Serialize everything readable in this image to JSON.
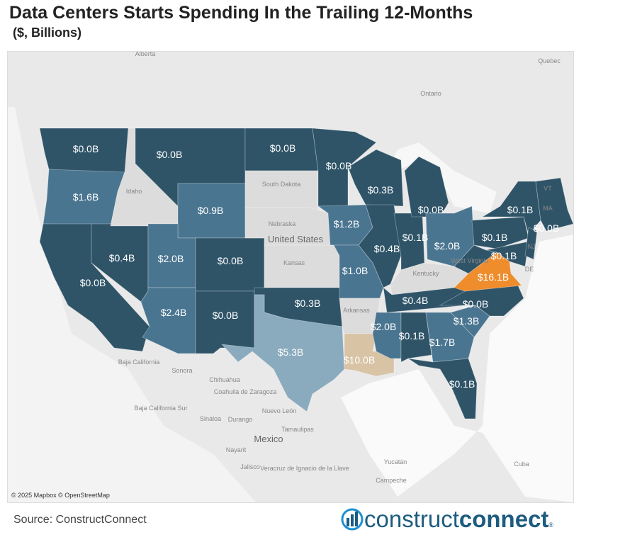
{
  "title": "Data Centers Starts Spending In the Trailing 12-Months",
  "subtitle": "($, Billions)",
  "credit": "© 2025 Mapbox © OpenStreetMap",
  "source": "Source: ConstructConnect",
  "logo": {
    "light": "construct",
    "bold": "connect",
    "mark": "®"
  },
  "colors": {
    "dark": "#2f5468",
    "mid": "#4a7590",
    "light": "#8aaabd",
    "tan": "#d8c3a5",
    "orange": "#ef8c2c",
    "nodata": "#dcdcdc"
  },
  "basemap_labels": [
    "Alberta",
    "Quebec",
    "Ontario",
    "Idaho",
    "South Dakota",
    "Nebraska",
    "United States",
    "Kansas",
    "Arkansas",
    "Kentucky",
    "Baja California",
    "Sonora",
    "Chihuahua",
    "Coahuila de Zaragoza",
    "Nuevo León",
    "Baja California Sur",
    "Sinaloa",
    "Durango",
    "Tamaulipas",
    "Mexico",
    "Nayarit",
    "Jalisco",
    "Veracruz de Ignacio de la Llave",
    "Yucatán",
    "Campeche",
    "Cuba",
    "West Virginia",
    "VT",
    "MA",
    "NJ",
    "DE"
  ],
  "states": [
    {
      "code": "WA",
      "label": "$0.0B",
      "tier": "dark"
    },
    {
      "code": "OR",
      "label": "$1.6B",
      "tier": "mid"
    },
    {
      "code": "CA",
      "label": "$0.0B",
      "tier": "dark"
    },
    {
      "code": "NV",
      "label": "$0.4B",
      "tier": "dark"
    },
    {
      "code": "ID",
      "label": "",
      "tier": "nodata"
    },
    {
      "code": "MT",
      "label": "$0.0B",
      "tier": "dark"
    },
    {
      "code": "WY",
      "label": "$0.9B",
      "tier": "mid"
    },
    {
      "code": "UT",
      "label": "$2.0B",
      "tier": "mid"
    },
    {
      "code": "CO",
      "label": "$0.0B",
      "tier": "dark"
    },
    {
      "code": "AZ",
      "label": "$2.4B",
      "tier": "mid"
    },
    {
      "code": "NM",
      "label": "$0.0B",
      "tier": "dark"
    },
    {
      "code": "ND",
      "label": "$0.0B",
      "tier": "dark"
    },
    {
      "code": "SD",
      "label": "",
      "tier": "nodata"
    },
    {
      "code": "NE",
      "label": "",
      "tier": "nodata"
    },
    {
      "code": "KS",
      "label": "",
      "tier": "nodata"
    },
    {
      "code": "OK",
      "label": "$0.3B",
      "tier": "dark"
    },
    {
      "code": "TX",
      "label": "$5.3B",
      "tier": "light"
    },
    {
      "code": "MN",
      "label": "$0.0B",
      "tier": "dark"
    },
    {
      "code": "IA",
      "label": "$1.2B",
      "tier": "mid"
    },
    {
      "code": "MO",
      "label": "$1.0B",
      "tier": "mid"
    },
    {
      "code": "AR",
      "label": "",
      "tier": "nodata"
    },
    {
      "code": "LA",
      "label": "$10.0B",
      "tier": "tan"
    },
    {
      "code": "WI",
      "label": "$0.3B",
      "tier": "dark"
    },
    {
      "code": "IL",
      "label": "$0.4B",
      "tier": "dark"
    },
    {
      "code": "IN",
      "label": "$0.1B",
      "tier": "dark"
    },
    {
      "code": "MI",
      "label": "$0.0B",
      "tier": "dark"
    },
    {
      "code": "OH",
      "label": "$2.0B",
      "tier": "mid"
    },
    {
      "code": "KY",
      "label": "",
      "tier": "nodata"
    },
    {
      "code": "TN",
      "label": "$0.4B",
      "tier": "dark"
    },
    {
      "code": "MS",
      "label": "$2.0B",
      "tier": "mid"
    },
    {
      "code": "AL",
      "label": "$0.1B",
      "tier": "dark"
    },
    {
      "code": "GA",
      "label": "$1.7B",
      "tier": "mid"
    },
    {
      "code": "FL",
      "label": "$0.1B",
      "tier": "dark"
    },
    {
      "code": "SC",
      "label": "$1.3B",
      "tier": "mid"
    },
    {
      "code": "NC",
      "label": "$0.0B",
      "tier": "dark"
    },
    {
      "code": "VA",
      "label": "$16.1B",
      "tier": "orange"
    },
    {
      "code": "WV",
      "label": "",
      "tier": "dark"
    },
    {
      "code": "PA",
      "label": "$0.1B",
      "tier": "dark"
    },
    {
      "code": "NY",
      "label": "$0.1B",
      "tier": "dark"
    },
    {
      "code": "MD",
      "label": "$0.1B",
      "tier": "dark"
    },
    {
      "code": "NJ",
      "label": "$0.0B",
      "tier": "dark"
    },
    {
      "code": "NE-REGION",
      "label": "",
      "tier": "dark"
    }
  ]
}
